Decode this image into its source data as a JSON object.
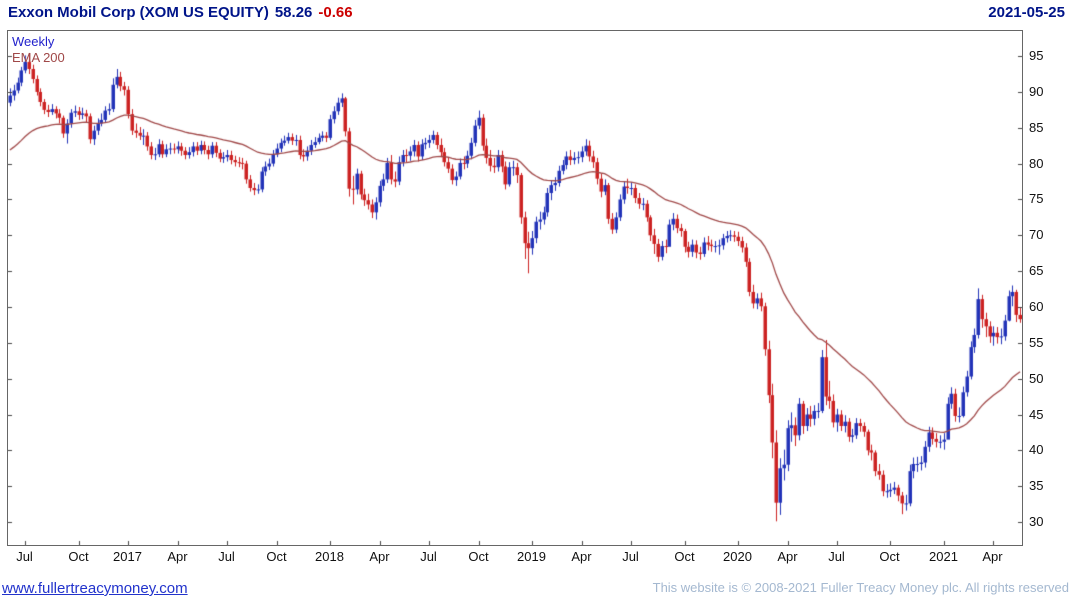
{
  "header": {
    "title": "Exxon Mobil Corp (XOM US EQUITY)",
    "last_price": "58.26",
    "change": "-0.66",
    "date": "2021-05-25"
  },
  "legend": {
    "timeframe": "Weekly",
    "overlay": "EMA 200"
  },
  "footer": {
    "site_link": "www.fullertreacymoney.com",
    "copyright": "This website is © 2008-2021 Fuller Treacy Money plc. All rights reserved"
  },
  "chart_data": {
    "type": "candlestick",
    "title": "Exxon Mobil Corp (XOM US EQUITY)",
    "timeframe": "Weekly",
    "overlay": "EMA 200",
    "ylim": [
      26.8,
      98.5
    ],
    "y_ticks": [
      95,
      90,
      85,
      80,
      75,
      70,
      65,
      60,
      55,
      50,
      45,
      40,
      35,
      30
    ],
    "x_ticks": [
      {
        "label": "Jul",
        "i": 4
      },
      {
        "label": "Oct",
        "i": 18
      },
      {
        "label": "2017",
        "i": 31
      },
      {
        "label": "Apr",
        "i": 44
      },
      {
        "label": "Jul",
        "i": 57
      },
      {
        "label": "Oct",
        "i": 70
      },
      {
        "label": "2018",
        "i": 84
      },
      {
        "label": "Apr",
        "i": 97
      },
      {
        "label": "Jul",
        "i": 110
      },
      {
        "label": "Oct",
        "i": 123
      },
      {
        "label": "2019",
        "i": 137
      },
      {
        "label": "Apr",
        "i": 150
      },
      {
        "label": "Jul",
        "i": 163
      },
      {
        "label": "Oct",
        "i": 177
      },
      {
        "label": "2020",
        "i": 191
      },
      {
        "label": "Apr",
        "i": 204
      },
      {
        "label": "Jul",
        "i": 217
      },
      {
        "label": "Oct",
        "i": 231
      },
      {
        "label": "2021",
        "i": 245
      },
      {
        "label": "Apr",
        "i": 258
      }
    ],
    "colors": {
      "up": "#2233b8",
      "down": "#cc2222",
      "ema": "#a04848",
      "axis": "#444444",
      "border": "#666666",
      "title": "#001489",
      "negative": "#cc0000",
      "legend_weekly": "#2222cc",
      "link": "#2233cc",
      "copyright": "#a4b8d0"
    },
    "ema": {
      "label": "EMA 200",
      "alpha": 0.049,
      "seed": 81.5
    },
    "first_open": 88.5,
    "weekly_hlc": [
      [
        90.5,
        88.0,
        89.5
      ],
      [
        91.0,
        88.8,
        90.2
      ],
      [
        92.0,
        89.8,
        91.3
      ],
      [
        93.5,
        90.8,
        93.0
      ],
      [
        95.1,
        92.6,
        94.2
      ],
      [
        95.4,
        92.5,
        93.2
      ],
      [
        93.8,
        91.2,
        91.8
      ],
      [
        92.3,
        89.5,
        90.0
      ],
      [
        90.5,
        88.0,
        88.6
      ],
      [
        89.0,
        86.9,
        87.5
      ],
      [
        88.2,
        86.5,
        87.2
      ],
      [
        88.3,
        86.8,
        87.6
      ],
      [
        88.0,
        86.3,
        87.0
      ],
      [
        87.6,
        85.6,
        86.4
      ],
      [
        86.7,
        83.6,
        84.2
      ],
      [
        86.2,
        82.8,
        85.6
      ],
      [
        87.6,
        85.0,
        87.1
      ],
      [
        88.1,
        86.5,
        87.3
      ],
      [
        87.9,
        86.1,
        86.8
      ],
      [
        87.8,
        86.2,
        87.0
      ],
      [
        87.5,
        85.8,
        86.6
      ],
      [
        87.0,
        82.8,
        83.4
      ],
      [
        85.3,
        82.6,
        84.6
      ],
      [
        86.3,
        84.0,
        85.6
      ],
      [
        87.0,
        85.2,
        86.1
      ],
      [
        88.0,
        85.7,
        87.4
      ],
      [
        88.4,
        86.8,
        87.6
      ],
      [
        91.9,
        87.2,
        91.0
      ],
      [
        93.2,
        90.5,
        92.1
      ],
      [
        92.8,
        90.1,
        90.8
      ],
      [
        91.4,
        89.5,
        90.3
      ],
      [
        90.8,
        86.3,
        86.9
      ],
      [
        87.6,
        84.0,
        84.6
      ],
      [
        85.6,
        83.6,
        84.3
      ],
      [
        85.1,
        83.3,
        83.9
      ],
      [
        84.8,
        82.6,
        83.9
      ],
      [
        84.4,
        81.8,
        82.4
      ],
      [
        83.0,
        80.6,
        81.2
      ],
      [
        82.2,
        80.5,
        81.3
      ],
      [
        83.4,
        80.9,
        82.7
      ],
      [
        83.2,
        80.8,
        81.3
      ],
      [
        82.7,
        80.9,
        82.0
      ],
      [
        82.9,
        81.3,
        82.1
      ],
      [
        82.8,
        81.4,
        82.0
      ],
      [
        83.1,
        81.4,
        82.4
      ],
      [
        82.9,
        81.1,
        81.8
      ],
      [
        82.3,
        80.6,
        81.2
      ],
      [
        82.3,
        80.7,
        81.6
      ],
      [
        83.0,
        81.0,
        82.4
      ],
      [
        83.0,
        81.2,
        81.8
      ],
      [
        83.2,
        81.3,
        82.6
      ],
      [
        83.1,
        81.3,
        81.9
      ],
      [
        82.5,
        80.6,
        81.3
      ],
      [
        83.0,
        80.8,
        82.5
      ],
      [
        83.0,
        80.9,
        81.5
      ],
      [
        82.0,
        80.2,
        80.7
      ],
      [
        81.6,
        80.1,
        80.9
      ],
      [
        81.9,
        80.3,
        81.2
      ],
      [
        81.8,
        79.9,
        80.5
      ],
      [
        81.1,
        79.6,
        80.2
      ],
      [
        80.9,
        79.5,
        80.1
      ],
      [
        80.8,
        79.2,
        80.0
      ],
      [
        80.4,
        77.2,
        77.8
      ],
      [
        78.4,
        76.1,
        76.6
      ],
      [
        77.3,
        75.6,
        76.3
      ],
      [
        77.1,
        75.8,
        76.4
      ],
      [
        79.5,
        76.0,
        78.9
      ],
      [
        80.3,
        78.3,
        79.6
      ],
      [
        80.7,
        79.1,
        80.0
      ],
      [
        81.9,
        79.6,
        81.3
      ],
      [
        82.8,
        80.9,
        82.1
      ],
      [
        83.5,
        81.6,
        82.9
      ],
      [
        83.9,
        82.5,
        83.2
      ],
      [
        84.3,
        82.8,
        83.7
      ],
      [
        84.2,
        82.6,
        83.2
      ],
      [
        84.0,
        82.5,
        83.3
      ],
      [
        83.9,
        80.6,
        81.2
      ],
      [
        82.0,
        80.3,
        81.0
      ],
      [
        82.4,
        80.4,
        81.8
      ],
      [
        83.3,
        81.2,
        82.6
      ],
      [
        83.7,
        82.2,
        83.0
      ],
      [
        84.2,
        82.7,
        83.6
      ],
      [
        84.5,
        83.1,
        83.9
      ],
      [
        84.4,
        83.0,
        83.6
      ],
      [
        86.8,
        83.3,
        86.2
      ],
      [
        88.0,
        85.6,
        87.3
      ],
      [
        89.2,
        86.8,
        88.5
      ],
      [
        89.8,
        87.9,
        89.1
      ],
      [
        89.3,
        83.8,
        84.5
      ],
      [
        85.0,
        75.4,
        76.5
      ],
      [
        78.3,
        74.3,
        76.4
      ],
      [
        79.3,
        75.7,
        78.6
      ],
      [
        79.0,
        75.0,
        75.7
      ],
      [
        76.5,
        74.1,
        74.9
      ],
      [
        75.8,
        73.6,
        74.3
      ],
      [
        75.0,
        72.4,
        73.2
      ],
      [
        75.3,
        72.2,
        74.6
      ],
      [
        77.6,
        74.0,
        76.9
      ],
      [
        78.6,
        76.2,
        77.8
      ],
      [
        80.8,
        77.3,
        80.1
      ],
      [
        81.2,
        77.1,
        77.8
      ],
      [
        78.9,
        76.7,
        77.5
      ],
      [
        81.0,
        77.0,
        80.2
      ],
      [
        81.9,
        79.6,
        81.2
      ],
      [
        82.0,
        80.2,
        81.1
      ],
      [
        82.4,
        80.4,
        81.7
      ],
      [
        83.3,
        81.0,
        82.6
      ],
      [
        83.1,
        80.3,
        81.0
      ],
      [
        83.4,
        80.5,
        82.7
      ],
      [
        83.6,
        82.0,
        82.9
      ],
      [
        84.0,
        82.2,
        83.3
      ],
      [
        84.6,
        82.8,
        84.0
      ],
      [
        84.4,
        82.0,
        82.6
      ],
      [
        83.5,
        80.9,
        81.6
      ],
      [
        82.2,
        79.6,
        80.2
      ],
      [
        80.9,
        78.7,
        79.3
      ],
      [
        79.9,
        77.1,
        77.7
      ],
      [
        78.9,
        76.9,
        78.2
      ],
      [
        80.7,
        77.8,
        80.1
      ],
      [
        81.0,
        79.2,
        80.0
      ],
      [
        81.8,
        79.4,
        81.1
      ],
      [
        83.6,
        80.6,
        82.9
      ],
      [
        86.1,
        82.4,
        85.3
      ],
      [
        87.4,
        84.8,
        86.4
      ],
      [
        86.9,
        81.8,
        82.5
      ],
      [
        83.5,
        80.0,
        80.8
      ],
      [
        81.9,
        78.9,
        79.7
      ],
      [
        80.8,
        78.7,
        79.5
      ],
      [
        81.9,
        78.9,
        81.2
      ],
      [
        81.8,
        78.8,
        79.6
      ],
      [
        80.3,
        76.4,
        77.1
      ],
      [
        80.2,
        76.8,
        79.5
      ],
      [
        80.4,
        78.3,
        79.5
      ],
      [
        80.1,
        77.3,
        78.4
      ],
      [
        78.7,
        71.6,
        72.5
      ],
      [
        73.3,
        66.7,
        68.9
      ],
      [
        70.5,
        64.7,
        68.2
      ],
      [
        70.6,
        67.3,
        69.6
      ],
      [
        72.6,
        68.9,
        71.9
      ],
      [
        73.3,
        70.8,
        72.2
      ],
      [
        74.0,
        71.5,
        73.2
      ],
      [
        76.6,
        72.6,
        75.9
      ],
      [
        77.7,
        74.9,
        77.0
      ],
      [
        78.1,
        76.2,
        77.3
      ],
      [
        79.7,
        76.8,
        79.0
      ],
      [
        80.5,
        78.5,
        79.8
      ],
      [
        81.7,
        79.2,
        81.0
      ],
      [
        81.9,
        79.8,
        80.5
      ],
      [
        81.6,
        79.9,
        80.8
      ],
      [
        81.7,
        80.0,
        80.9
      ],
      [
        82.4,
        80.2,
        81.7
      ],
      [
        83.4,
        81.1,
        82.5
      ],
      [
        83.2,
        80.3,
        81.0
      ],
      [
        81.8,
        79.4,
        80.2
      ],
      [
        80.8,
        77.1,
        77.9
      ],
      [
        78.6,
        75.3,
        76.1
      ],
      [
        77.8,
        75.6,
        77.0
      ],
      [
        77.3,
        71.6,
        72.3
      ],
      [
        73.1,
        70.2,
        70.8
      ],
      [
        73.2,
        70.3,
        72.5
      ],
      [
        75.7,
        72.0,
        75.0
      ],
      [
        77.5,
        74.4,
        76.8
      ],
      [
        77.9,
        75.8,
        76.6
      ],
      [
        77.4,
        75.6,
        76.6
      ],
      [
        77.1,
        74.5,
        75.2
      ],
      [
        75.9,
        73.7,
        74.4
      ],
      [
        75.2,
        73.5,
        74.4
      ],
      [
        74.9,
        71.9,
        72.5
      ],
      [
        72.8,
        69.2,
        70.0
      ],
      [
        70.9,
        67.4,
        68.8
      ],
      [
        69.5,
        66.3,
        67.0
      ],
      [
        69.2,
        66.5,
        68.5
      ],
      [
        69.4,
        67.5,
        68.4
      ],
      [
        72.2,
        68.6,
        71.5
      ],
      [
        73.1,
        70.7,
        72.3
      ],
      [
        72.9,
        70.3,
        71.0
      ],
      [
        71.6,
        69.8,
        70.6
      ],
      [
        70.9,
        67.6,
        68.4
      ],
      [
        69.1,
        66.9,
        67.7
      ],
      [
        69.4,
        67.0,
        68.7
      ],
      [
        69.3,
        66.8,
        67.6
      ],
      [
        68.4,
        66.6,
        67.4
      ],
      [
        69.7,
        67.0,
        69.0
      ],
      [
        69.9,
        67.9,
        68.7
      ],
      [
        69.4,
        67.7,
        68.5
      ],
      [
        69.2,
        67.6,
        68.5
      ],
      [
        69.4,
        67.3,
        68.6
      ],
      [
        70.2,
        68.0,
        69.6
      ],
      [
        70.6,
        69.0,
        69.9
      ],
      [
        70.7,
        69.2,
        70.0
      ],
      [
        70.6,
        69.1,
        69.8
      ],
      [
        70.5,
        68.5,
        69.2
      ],
      [
        69.8,
        67.6,
        68.3
      ],
      [
        68.9,
        65.6,
        66.3
      ],
      [
        66.8,
        61.5,
        62.1
      ],
      [
        63.1,
        59.8,
        60.5
      ],
      [
        61.9,
        59.7,
        61.2
      ],
      [
        62.0,
        59.4,
        60.1
      ],
      [
        60.6,
        53.2,
        54.1
      ],
      [
        55.3,
        46.6,
        47.7
      ],
      [
        49.3,
        38.9,
        41.1
      ],
      [
        42.8,
        30.1,
        32.7
      ],
      [
        38.9,
        31.0,
        37.5
      ],
      [
        40.1,
        35.8,
        38.0
      ],
      [
        44.2,
        37.1,
        43.1
      ],
      [
        45.3,
        41.2,
        43.5
      ],
      [
        44.6,
        40.6,
        42.1
      ],
      [
        47.3,
        41.4,
        46.5
      ],
      [
        46.9,
        42.3,
        43.4
      ],
      [
        45.9,
        42.7,
        45.0
      ],
      [
        46.2,
        43.3,
        44.4
      ],
      [
        46.3,
        43.5,
        45.5
      ],
      [
        46.6,
        44.5,
        45.5
      ],
      [
        54.0,
        45.2,
        53.0
      ],
      [
        55.4,
        46.3,
        47.5
      ],
      [
        49.7,
        45.8,
        46.9
      ],
      [
        47.8,
        43.2,
        43.9
      ],
      [
        45.8,
        42.6,
        45.0
      ],
      [
        45.6,
        42.7,
        43.4
      ],
      [
        44.9,
        42.5,
        44.0
      ],
      [
        44.5,
        41.2,
        41.9
      ],
      [
        43.0,
        41.1,
        42.1
      ],
      [
        44.5,
        41.6,
        43.8
      ],
      [
        44.4,
        42.6,
        43.4
      ],
      [
        43.9,
        41.9,
        42.6
      ],
      [
        42.9,
        39.3,
        40.0
      ],
      [
        40.8,
        38.6,
        39.7
      ],
      [
        40.0,
        36.4,
        37.1
      ],
      [
        38.1,
        35.9,
        36.6
      ],
      [
        37.2,
        33.6,
        34.3
      ],
      [
        35.3,
        33.4,
        34.3
      ],
      [
        35.4,
        33.5,
        34.5
      ],
      [
        35.6,
        33.9,
        34.8
      ],
      [
        35.2,
        32.9,
        33.7
      ],
      [
        34.2,
        31.1,
        32.6
      ],
      [
        33.8,
        31.6,
        32.6
      ],
      [
        38.0,
        32.2,
        37.1
      ],
      [
        39.0,
        36.1,
        38.1
      ],
      [
        39.1,
        37.0,
        38.1
      ],
      [
        39.2,
        37.2,
        38.3
      ],
      [
        41.3,
        37.6,
        40.5
      ],
      [
        43.3,
        39.8,
        42.5
      ],
      [
        43.2,
        40.8,
        41.6
      ],
      [
        42.4,
        40.4,
        41.2
      ],
      [
        42.1,
        40.3,
        41.2
      ],
      [
        42.4,
        40.1,
        41.5
      ],
      [
        47.4,
        41.8,
        46.5
      ],
      [
        48.8,
        45.8,
        47.9
      ],
      [
        48.6,
        44.0,
        44.8
      ],
      [
        46.0,
        43.9,
        44.8
      ],
      [
        48.9,
        44.6,
        48.1
      ],
      [
        51.1,
        47.5,
        50.3
      ],
      [
        55.2,
        49.9,
        54.4
      ],
      [
        57.0,
        53.6,
        56.1
      ],
      [
        62.6,
        55.6,
        61.1
      ],
      [
        61.7,
        57.1,
        58.3
      ],
      [
        59.2,
        55.8,
        57.3
      ],
      [
        58.0,
        55.0,
        55.9
      ],
      [
        57.3,
        54.6,
        56.4
      ],
      [
        57.2,
        54.9,
        55.8
      ],
      [
        57.0,
        54.8,
        55.9
      ],
      [
        58.9,
        55.3,
        58.1
      ],
      [
        62.3,
        58.0,
        61.5
      ],
      [
        63.0,
        60.1,
        62.1
      ],
      [
        62.4,
        57.9,
        58.9
      ],
      [
        60.0,
        57.8,
        58.3
      ]
    ]
  }
}
